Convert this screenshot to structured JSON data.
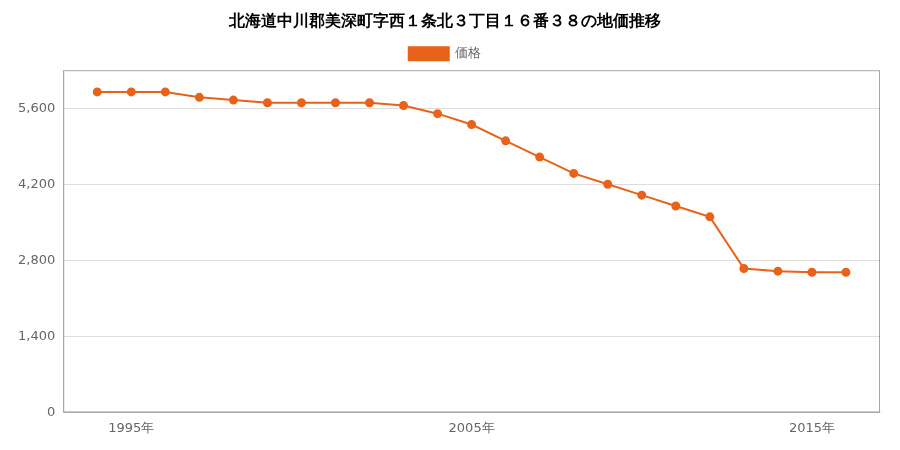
{
  "chart_data": {
    "type": "line",
    "title": "北海道中川郡美深町字西１条北３丁目１６番３８の地価推移",
    "x": [
      1994,
      1995,
      1996,
      1997,
      1998,
      1999,
      2000,
      2001,
      2002,
      2003,
      2004,
      2005,
      2006,
      2007,
      2008,
      2009,
      2010,
      2011,
      2012,
      2013,
      2014,
      2015,
      2016
    ],
    "series": [
      {
        "name": "価格",
        "color": "#e8621a",
        "marker": "circle",
        "line_style": "solid",
        "values": [
          5900,
          5900,
          5900,
          5800,
          5750,
          5700,
          5700,
          5700,
          5700,
          5650,
          5500,
          5300,
          5000,
          4700,
          4400,
          4200,
          4000,
          3800,
          3600,
          2650,
          2600,
          2580,
          2580
        ]
      }
    ],
    "xlim": [
      1993,
      2017
    ],
    "xticks": [
      {
        "value": 1995,
        "label": "1995年"
      },
      {
        "value": 2005,
        "label": "2005年"
      },
      {
        "value": 2015,
        "label": "2015年"
      }
    ],
    "ylim": [
      0,
      6300
    ],
    "yticks": [
      0,
      {
        "value": 1400,
        "label": "1,400"
      },
      {
        "value": 2800,
        "label": "2,800"
      },
      {
        "value": 4200,
        "label": "4,200"
      },
      {
        "value": 5600,
        "label": "5,600"
      }
    ],
    "grid": "y",
    "legend": "top"
  }
}
